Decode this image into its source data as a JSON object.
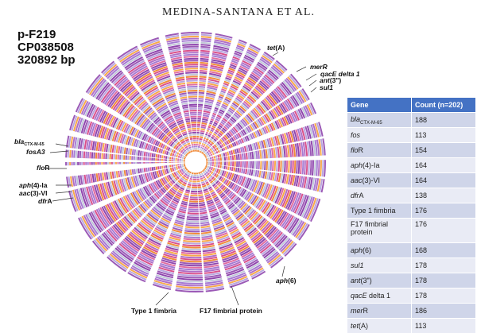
{
  "header": {
    "running_head": "MEDINA-SANTANA ET AL."
  },
  "plasmid": {
    "name": "p-F219",
    "accession": "CP038508",
    "size": "320892 bp"
  },
  "ring_labels": {
    "tetA_pre": "tet",
    "tetA_post": "(A)",
    "merR": "merR",
    "qacE": "qacE delta 1",
    "ant_pre": "ant",
    "ant_post": "(3\")",
    "sul1": "sul1",
    "bla_main": "bla",
    "bla_sub": "CTX-M-65",
    "fosA3": "fosA3",
    "floR_pre": "flo",
    "floR_post": "R",
    "aph4_pre": "aph",
    "aph4_post": "(4)-Ia",
    "aac3_pre": "aac",
    "aac3_post": "(3)-VI",
    "dfrA_pre": "dfr",
    "dfrA_post": "A",
    "aph6_pre": "aph",
    "aph6_post": "(6)",
    "type1": "Type 1 fimbria",
    "f17": "F17 fimbrial protein"
  },
  "table": {
    "headers": [
      "Gene",
      "Count (n=202)"
    ],
    "rows": [
      {
        "gene": "bla",
        "sub": "CTX-M-65",
        "count": "188"
      },
      {
        "gene": "fos",
        "count": "113"
      },
      {
        "gene": "flo",
        "suffix": "R",
        "count": "154"
      },
      {
        "gene": "aph",
        "suffix": "(4)-Ia",
        "count": "164"
      },
      {
        "gene": "aac",
        "suffix": "(3)-VI",
        "count": "164"
      },
      {
        "gene": "dfr",
        "suffix": "A",
        "count": "138"
      },
      {
        "gene": "Type 1 fimbria",
        "count": "176"
      },
      {
        "gene": "F17 fimbrial protein",
        "count": "176"
      },
      {
        "gene": "aph",
        "suffix": "(6)",
        "count": "168"
      },
      {
        "gene": "sul1",
        "count": "178"
      },
      {
        "gene": "ant",
        "suffix": "(3\")",
        "count": "178"
      },
      {
        "gene": "qacE",
        "suffix": " delta 1",
        "count": "178"
      },
      {
        "gene": "mer",
        "suffix": "R",
        "count": "186"
      },
      {
        "gene": "tet",
        "suffix": "(A)",
        "count": "113"
      }
    ]
  },
  "ring_palette": [
    "#9b59b6",
    "#b06fc6",
    "#8e44ad",
    "#d94f8a",
    "#e06aa0",
    "#f08c3c",
    "#f7a94a",
    "#c1c7d8",
    "#b9a6e0",
    "#a57bd3"
  ]
}
